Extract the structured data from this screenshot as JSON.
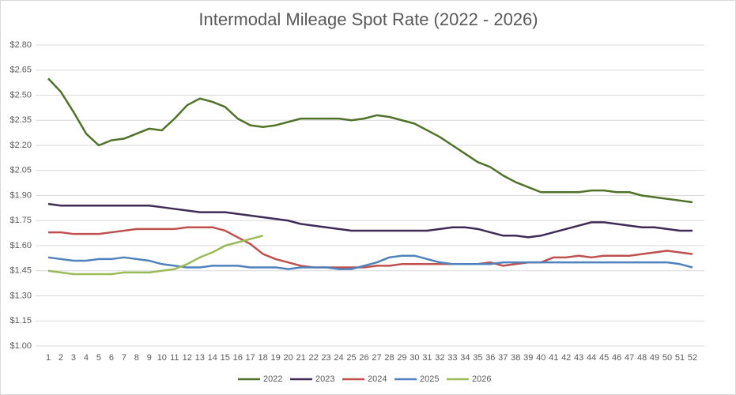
{
  "chart_data": {
    "type": "line",
    "title": "Intermodal Mileage Spot Rate (2022 - 2026)",
    "x": [
      1,
      2,
      3,
      4,
      5,
      6,
      7,
      8,
      9,
      10,
      11,
      12,
      13,
      14,
      15,
      16,
      17,
      18,
      19,
      20,
      21,
      22,
      23,
      24,
      25,
      26,
      27,
      28,
      29,
      30,
      31,
      32,
      33,
      34,
      35,
      36,
      37,
      38,
      39,
      40,
      41,
      42,
      43,
      44,
      45,
      46,
      47,
      48,
      49,
      50,
      51,
      52
    ],
    "xlim": [
      1,
      52
    ],
    "ylim": [
      1.0,
      2.8
    ],
    "yticks": [
      {
        "value": 1.0,
        "label": "$1.00"
      },
      {
        "value": 1.15,
        "label": "$1.15"
      },
      {
        "value": 1.3,
        "label": "$1.30"
      },
      {
        "value": 1.45,
        "label": "$1.45"
      },
      {
        "value": 1.6,
        "label": "$1.60"
      },
      {
        "value": 1.75,
        "label": "$1.75"
      },
      {
        "value": 1.9,
        "label": "$1.90"
      },
      {
        "value": 2.05,
        "label": "$2.05"
      },
      {
        "value": 2.2,
        "label": "$2.20"
      },
      {
        "value": 2.35,
        "label": "$2.35"
      },
      {
        "value": 2.5,
        "label": "$2.50"
      },
      {
        "value": 2.65,
        "label": "$2.65"
      },
      {
        "value": 2.8,
        "label": "$2.80"
      }
    ],
    "grid": true,
    "legend": "bottom",
    "series": [
      {
        "name": "2022",
        "color": "#4f7329",
        "values": [
          2.6,
          2.52,
          2.4,
          2.27,
          2.2,
          2.23,
          2.24,
          2.27,
          2.3,
          2.29,
          2.36,
          2.44,
          2.48,
          2.46,
          2.43,
          2.36,
          2.32,
          2.31,
          2.32,
          2.34,
          2.36,
          2.36,
          2.36,
          2.36,
          2.35,
          2.36,
          2.38,
          2.37,
          2.35,
          2.33,
          2.29,
          2.25,
          2.2,
          2.15,
          2.1,
          2.07,
          2.02,
          1.98,
          1.95,
          1.92,
          1.92,
          1.92,
          1.92,
          1.93,
          1.93,
          1.92,
          1.92,
          1.9,
          1.89,
          1.88,
          1.87,
          1.86
        ]
      },
      {
        "name": "2023",
        "color": "#3f2b56",
        "values": [
          1.85,
          1.84,
          1.84,
          1.84,
          1.84,
          1.84,
          1.84,
          1.84,
          1.84,
          1.83,
          1.82,
          1.81,
          1.8,
          1.8,
          1.8,
          1.79,
          1.78,
          1.77,
          1.76,
          1.75,
          1.73,
          1.72,
          1.71,
          1.7,
          1.69,
          1.69,
          1.69,
          1.69,
          1.69,
          1.69,
          1.69,
          1.7,
          1.71,
          1.71,
          1.7,
          1.68,
          1.66,
          1.66,
          1.65,
          1.66,
          1.68,
          1.7,
          1.72,
          1.74,
          1.74,
          1.73,
          1.72,
          1.71,
          1.71,
          1.7,
          1.69,
          1.69
        ]
      },
      {
        "name": "2024",
        "color": "#c0504d",
        "values": [
          1.68,
          1.68,
          1.67,
          1.67,
          1.67,
          1.68,
          1.69,
          1.7,
          1.7,
          1.7,
          1.7,
          1.71,
          1.71,
          1.71,
          1.69,
          1.65,
          1.61,
          1.55,
          1.52,
          1.5,
          1.48,
          1.47,
          1.47,
          1.47,
          1.47,
          1.47,
          1.48,
          1.48,
          1.49,
          1.49,
          1.49,
          1.49,
          1.49,
          1.49,
          1.49,
          1.5,
          1.48,
          1.49,
          1.5,
          1.5,
          1.53,
          1.53,
          1.54,
          1.53,
          1.54,
          1.54,
          1.54,
          1.55,
          1.56,
          1.57,
          1.56,
          1.55
        ]
      },
      {
        "name": "2025",
        "color": "#4f81bd",
        "values": [
          1.53,
          1.52,
          1.51,
          1.51,
          1.52,
          1.52,
          1.53,
          1.52,
          1.51,
          1.49,
          1.48,
          1.47,
          1.47,
          1.48,
          1.48,
          1.48,
          1.47,
          1.47,
          1.47,
          1.46,
          1.47,
          1.47,
          1.47,
          1.46,
          1.46,
          1.48,
          1.5,
          1.53,
          1.54,
          1.54,
          1.52,
          1.5,
          1.49,
          1.49,
          1.49,
          1.49,
          1.5,
          1.5,
          1.5,
          1.5,
          1.5,
          1.5,
          1.5,
          1.5,
          1.5,
          1.5,
          1.5,
          1.5,
          1.5,
          1.5,
          1.49,
          1.47
        ]
      },
      {
        "name": "2026",
        "color": "#9bbb59",
        "values": [
          1.45,
          1.44,
          1.43,
          1.43,
          1.43,
          1.43,
          1.44,
          1.44,
          1.44,
          1.45,
          1.46,
          1.49,
          1.53,
          1.56,
          1.6,
          1.62,
          1.64,
          1.66,
          null,
          null,
          null,
          null,
          null,
          null,
          null,
          null,
          null,
          null,
          null,
          null,
          null,
          null,
          null,
          null,
          null,
          null,
          null,
          null,
          null,
          null,
          null,
          null,
          null,
          null,
          null,
          null,
          null,
          null,
          null,
          null,
          null,
          null
        ]
      }
    ]
  }
}
